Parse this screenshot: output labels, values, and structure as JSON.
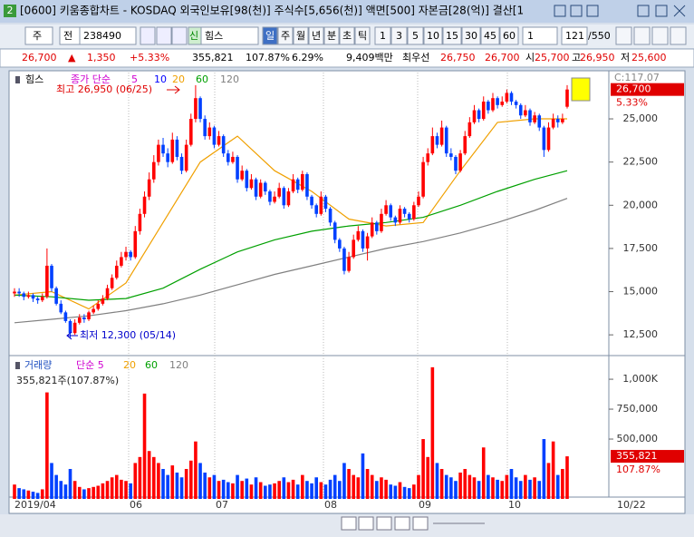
{
  "window": {
    "app_badge": "2",
    "title": "[0600] 키움종합차트 - KOSDAQ 외국인보유[98(천)] 주식수[5,656(천)] 액면[500] 자본금[28(억)] 결산[1",
    "toolbar": {
      "type_label": "주",
      "scope_label": "전",
      "code": "238490",
      "new_badge": "신",
      "name": "힘스",
      "periods": [
        "일",
        "주",
        "월",
        "년",
        "분",
        "초",
        "틱"
      ],
      "intervals": [
        "1",
        "3",
        "5",
        "10",
        "15",
        "30",
        "45",
        "60"
      ],
      "multiplier": "1",
      "count": "121",
      "total": "/550"
    },
    "quote": [
      {
        "text": "26,700",
        "color": "#e00000"
      },
      {
        "text": "▲",
        "color": "#e00000"
      },
      {
        "text": "1,350",
        "color": "#e00000"
      },
      {
        "text": "+5.33%",
        "color": "#e00000"
      },
      {
        "text": "355,821",
        "color": "#000000"
      },
      {
        "text": "107.87%",
        "color": "#000000"
      },
      {
        "text": "6.29%",
        "color": "#000000"
      },
      {
        "text": "9,409백만",
        "color": "#000000"
      },
      {
        "text": "최우선",
        "color": "#000000"
      },
      {
        "text": "26,750",
        "color": "#e00000"
      },
      {
        "text": "26,700",
        "color": "#e00000"
      },
      {
        "text": "시",
        "color": "#000000"
      },
      {
        "text": "25,700",
        "color": "#e00000"
      },
      {
        "text": "고",
        "color": "#000000"
      },
      {
        "text": "26,950",
        "color": "#e00000"
      },
      {
        "text": "저",
        "color": "#000000"
      },
      {
        "text": "25,600",
        "color": "#e00000"
      }
    ]
  },
  "chart_data": [
    {
      "type": "candlestick",
      "title": "힘스",
      "legend_label": "종가 단순",
      "up_color": "#ff0000",
      "down_color": "#0040ff",
      "moving_averages": [
        {
          "name": "5",
          "color": "#d000d0"
        },
        {
          "name": "10",
          "color": "#0000ff"
        },
        {
          "name": "20",
          "color": "#f0a000",
          "values": [
            14800,
            15000,
            14000,
            15500,
            19000,
            22500,
            24000,
            22000,
            20800,
            19200,
            18800,
            19000,
            22000,
            24800,
            25000,
            25000
          ]
        },
        {
          "name": "60",
          "color": "#00a000",
          "values": [
            14800,
            14700,
            14500,
            14600,
            15200,
            16300,
            17300,
            18000,
            18500,
            18800,
            19000,
            19300,
            20000,
            20800,
            21500,
            22000
          ]
        },
        {
          "name": "120",
          "color": "#808080",
          "values": [
            13200,
            13400,
            13600,
            13900,
            14300,
            14800,
            15400,
            16000,
            16500,
            17000,
            17500,
            17900,
            18400,
            19000,
            19700,
            20400
          ]
        }
      ],
      "ma_x": [
        0,
        8,
        16,
        24,
        32,
        40,
        48,
        56,
        64,
        72,
        80,
        88,
        96,
        104,
        112,
        119
      ],
      "candles": [
        [
          14900,
          15200,
          14700,
          15000
        ],
        [
          15000,
          15200,
          14700,
          14900
        ],
        [
          14900,
          15000,
          14500,
          14700
        ],
        [
          14700,
          15000,
          14600,
          14800
        ],
        [
          14800,
          14900,
          14400,
          14600
        ],
        [
          14600,
          14700,
          14300,
          14500
        ],
        [
          14500,
          14900,
          14400,
          14700
        ],
        [
          14700,
          17500,
          14600,
          16500
        ],
        [
          16500,
          16600,
          15000,
          15200
        ],
        [
          15200,
          15300,
          14200,
          14300
        ],
        [
          14300,
          14500,
          13700,
          13800
        ],
        [
          13800,
          13900,
          13200,
          13300
        ],
        [
          13300,
          13400,
          12300,
          12600
        ],
        [
          12600,
          13400,
          12500,
          13200
        ],
        [
          13200,
          13700,
          13100,
          13500
        ],
        [
          13500,
          13700,
          13200,
          13400
        ],
        [
          13400,
          13900,
          13300,
          13800
        ],
        [
          13800,
          14200,
          13700,
          14000
        ],
        [
          14000,
          14500,
          13900,
          14300
        ],
        [
          14300,
          14800,
          14200,
          14600
        ],
        [
          14600,
          15400,
          14500,
          15200
        ],
        [
          15200,
          16000,
          15100,
          15800
        ],
        [
          15800,
          16800,
          15700,
          16500
        ],
        [
          16500,
          17300,
          16400,
          17000
        ],
        [
          17000,
          17600,
          16800,
          17300
        ],
        [
          17300,
          17400,
          16800,
          17000
        ],
        [
          17000,
          18800,
          16900,
          18500
        ],
        [
          18500,
          19800,
          18300,
          19500
        ],
        [
          19500,
          20800,
          19300,
          20500
        ],
        [
          20500,
          21900,
          20300,
          21500
        ],
        [
          21500,
          22900,
          21300,
          22500
        ],
        [
          22500,
          23800,
          22300,
          23500
        ],
        [
          23500,
          23900,
          22800,
          23000
        ],
        [
          23000,
          23300,
          22200,
          22500
        ],
        [
          22500,
          24200,
          22400,
          23800
        ],
        [
          23800,
          24000,
          22600,
          22800
        ],
        [
          22800,
          23000,
          21800,
          22000
        ],
        [
          22000,
          23800,
          21900,
          23500
        ],
        [
          23500,
          25300,
          23400,
          25000
        ],
        [
          25000,
          26950,
          24800,
          26200
        ],
        [
          26200,
          26300,
          24800,
          25000
        ],
        [
          25000,
          25200,
          23800,
          24000
        ],
        [
          24000,
          24800,
          23800,
          24500
        ],
        [
          24500,
          24600,
          23300,
          23500
        ],
        [
          23500,
          24300,
          23400,
          24000
        ],
        [
          24000,
          24100,
          22800,
          23000
        ],
        [
          23000,
          23200,
          22300,
          22500
        ],
        [
          22500,
          23100,
          22400,
          22800
        ],
        [
          22800,
          22900,
          21300,
          21500
        ],
        [
          21500,
          22300,
          21400,
          22000
        ],
        [
          22000,
          22100,
          20800,
          21000
        ],
        [
          21000,
          21800,
          20900,
          21500
        ],
        [
          21500,
          21600,
          20300,
          20500
        ],
        [
          20500,
          21500,
          20400,
          21300
        ],
        [
          21300,
          21400,
          20600,
          20800
        ],
        [
          20800,
          20900,
          20000,
          20200
        ],
        [
          20200,
          20800,
          20100,
          20500
        ],
        [
          20500,
          21300,
          20400,
          21000
        ],
        [
          21000,
          21100,
          19800,
          20000
        ],
        [
          20000,
          21000,
          19900,
          20800
        ],
        [
          20800,
          21800,
          20700,
          21500
        ],
        [
          21500,
          21600,
          20700,
          20900
        ],
        [
          20900,
          22000,
          20800,
          21800
        ],
        [
          21800,
          21900,
          20300,
          20500
        ],
        [
          20500,
          20600,
          19800,
          20000
        ],
        [
          20000,
          20100,
          19300,
          19500
        ],
        [
          19500,
          20800,
          19400,
          20500
        ],
        [
          20500,
          20600,
          19600,
          19800
        ],
        [
          19800,
          19900,
          18800,
          19000
        ],
        [
          19000,
          19100,
          17800,
          18000
        ],
        [
          18000,
          18100,
          17300,
          17500
        ],
        [
          17500,
          17600,
          16000,
          16200
        ],
        [
          16200,
          17300,
          16100,
          17000
        ],
        [
          17000,
          18300,
          16900,
          18000
        ],
        [
          18000,
          18800,
          17900,
          18500
        ],
        [
          18500,
          18600,
          17300,
          17500
        ],
        [
          17500,
          18400,
          16800,
          18200
        ],
        [
          18200,
          19300,
          18100,
          19000
        ],
        [
          19000,
          19100,
          18300,
          18500
        ],
        [
          18500,
          19800,
          18400,
          19500
        ],
        [
          19500,
          20300,
          19400,
          20000
        ],
        [
          20000,
          20100,
          19100,
          19300
        ],
        [
          19300,
          19400,
          18800,
          19000
        ],
        [
          19000,
          20000,
          18900,
          19800
        ],
        [
          19800,
          19900,
          19300,
          19500
        ],
        [
          19500,
          19600,
          19000,
          19200
        ],
        [
          19200,
          20200,
          19100,
          20000
        ],
        [
          20000,
          20800,
          19900,
          20500
        ],
        [
          20500,
          22800,
          20400,
          22500
        ],
        [
          22500,
          23300,
          22300,
          23000
        ],
        [
          23000,
          24500,
          22900,
          24000
        ],
        [
          24000,
          24200,
          23300,
          23500
        ],
        [
          23500,
          24900,
          23400,
          24500
        ],
        [
          24500,
          24600,
          22800,
          23000
        ],
        [
          23000,
          23300,
          22600,
          22800
        ],
        [
          22800,
          22900,
          21800,
          22000
        ],
        [
          22000,
          23200,
          21900,
          23000
        ],
        [
          23000,
          24300,
          22900,
          24000
        ],
        [
          24000,
          25100,
          23900,
          24800
        ],
        [
          24800,
          25800,
          24700,
          25500
        ],
        [
          25500,
          25600,
          24800,
          25000
        ],
        [
          25000,
          26300,
          24900,
          26000
        ],
        [
          26000,
          26100,
          25300,
          25500
        ],
        [
          25500,
          26500,
          25400,
          26200
        ],
        [
          26200,
          26300,
          25600,
          25800
        ],
        [
          25800,
          26300,
          25700,
          26000
        ],
        [
          26000,
          26700,
          25900,
          26500
        ],
        [
          26500,
          26600,
          25800,
          26000
        ],
        [
          26000,
          26100,
          25600,
          25800
        ],
        [
          25800,
          25900,
          25000,
          25200
        ],
        [
          25200,
          25800,
          25100,
          25500
        ],
        [
          25500,
          25600,
          24600,
          24800
        ],
        [
          24800,
          25400,
          24700,
          25200
        ],
        [
          25200,
          25300,
          24300,
          24500
        ],
        [
          24500,
          24600,
          22800,
          23200
        ],
        [
          23200,
          24800,
          23100,
          24500
        ],
        [
          24500,
          25300,
          24400,
          25000
        ],
        [
          25000,
          25200,
          24500,
          24800
        ],
        [
          24800,
          25300,
          24700,
          25000
        ],
        [
          25700,
          26950,
          25600,
          26700
        ]
      ],
      "ylim": [
        11300,
        27680
      ],
      "yticks": [
        {
          "value": 25000,
          "label": "25,000"
        },
        {
          "value": 22500,
          "label": "22,500"
        },
        {
          "value": 20000,
          "label": "20,000"
        },
        {
          "value": 17500,
          "label": "17,500"
        },
        {
          "value": 15000,
          "label": "15,000"
        },
        {
          "value": 12500,
          "label": "12,500"
        }
      ],
      "annotations": {
        "high": "최고 26,950 (06/25)",
        "low": "최저 12,300 (05/14)"
      },
      "top_label": "C:117.07",
      "current": {
        "value": 26700,
        "label": "26,700"
      },
      "change_label": "5.33%"
    },
    {
      "type": "bar",
      "title": "거래량",
      "ma_label": "단순 5",
      "ma_periods": [
        {
          "name": "20",
          "color": "#f0a000"
        },
        {
          "name": "60",
          "color": "#00a000"
        },
        {
          "name": "120",
          "color": "#808080"
        }
      ],
      "info": "355,821주(107.87%)",
      "values": [
        120000,
        90000,
        80000,
        70000,
        60000,
        50000,
        80000,
        890000,
        300000,
        200000,
        150000,
        120000,
        250000,
        150000,
        100000,
        80000,
        90000,
        100000,
        110000,
        130000,
        150000,
        180000,
        200000,
        160000,
        150000,
        130000,
        300000,
        350000,
        880000,
        400000,
        350000,
        300000,
        250000,
        200000,
        280000,
        220000,
        180000,
        250000,
        320000,
        480000,
        300000,
        220000,
        180000,
        200000,
        150000,
        160000,
        140000,
        130000,
        200000,
        150000,
        170000,
        120000,
        180000,
        140000,
        110000,
        120000,
        130000,
        150000,
        180000,
        140000,
        160000,
        120000,
        200000,
        150000,
        130000,
        180000,
        140000,
        120000,
        160000,
        200000,
        150000,
        300000,
        250000,
        200000,
        180000,
        380000,
        250000,
        200000,
        150000,
        180000,
        160000,
        120000,
        110000,
        140000,
        100000,
        90000,
        120000,
        200000,
        500000,
        350000,
        1100000,
        300000,
        250000,
        200000,
        180000,
        150000,
        220000,
        250000,
        200000,
        180000,
        150000,
        430000,
        200000,
        180000,
        160000,
        150000,
        200000,
        250000,
        180000,
        150000,
        200000,
        160000,
        180000,
        150000,
        500000,
        300000,
        480000,
        200000,
        250000,
        355821
      ],
      "ylim": [
        0,
        1190000
      ],
      "yticks": [
        {
          "value": 1000000,
          "label": "1,000K"
        },
        {
          "value": 750000,
          "label": "750,000"
        },
        {
          "value": 500000,
          "label": "500,000"
        }
      ],
      "current": {
        "value": 355821,
        "label": "355,821"
      },
      "ratio_label": "107.87%",
      "x_labels": [
        "2019/04",
        "06",
        "07",
        "08",
        "09",
        "10"
      ],
      "x_end_label": "10/22"
    }
  ]
}
